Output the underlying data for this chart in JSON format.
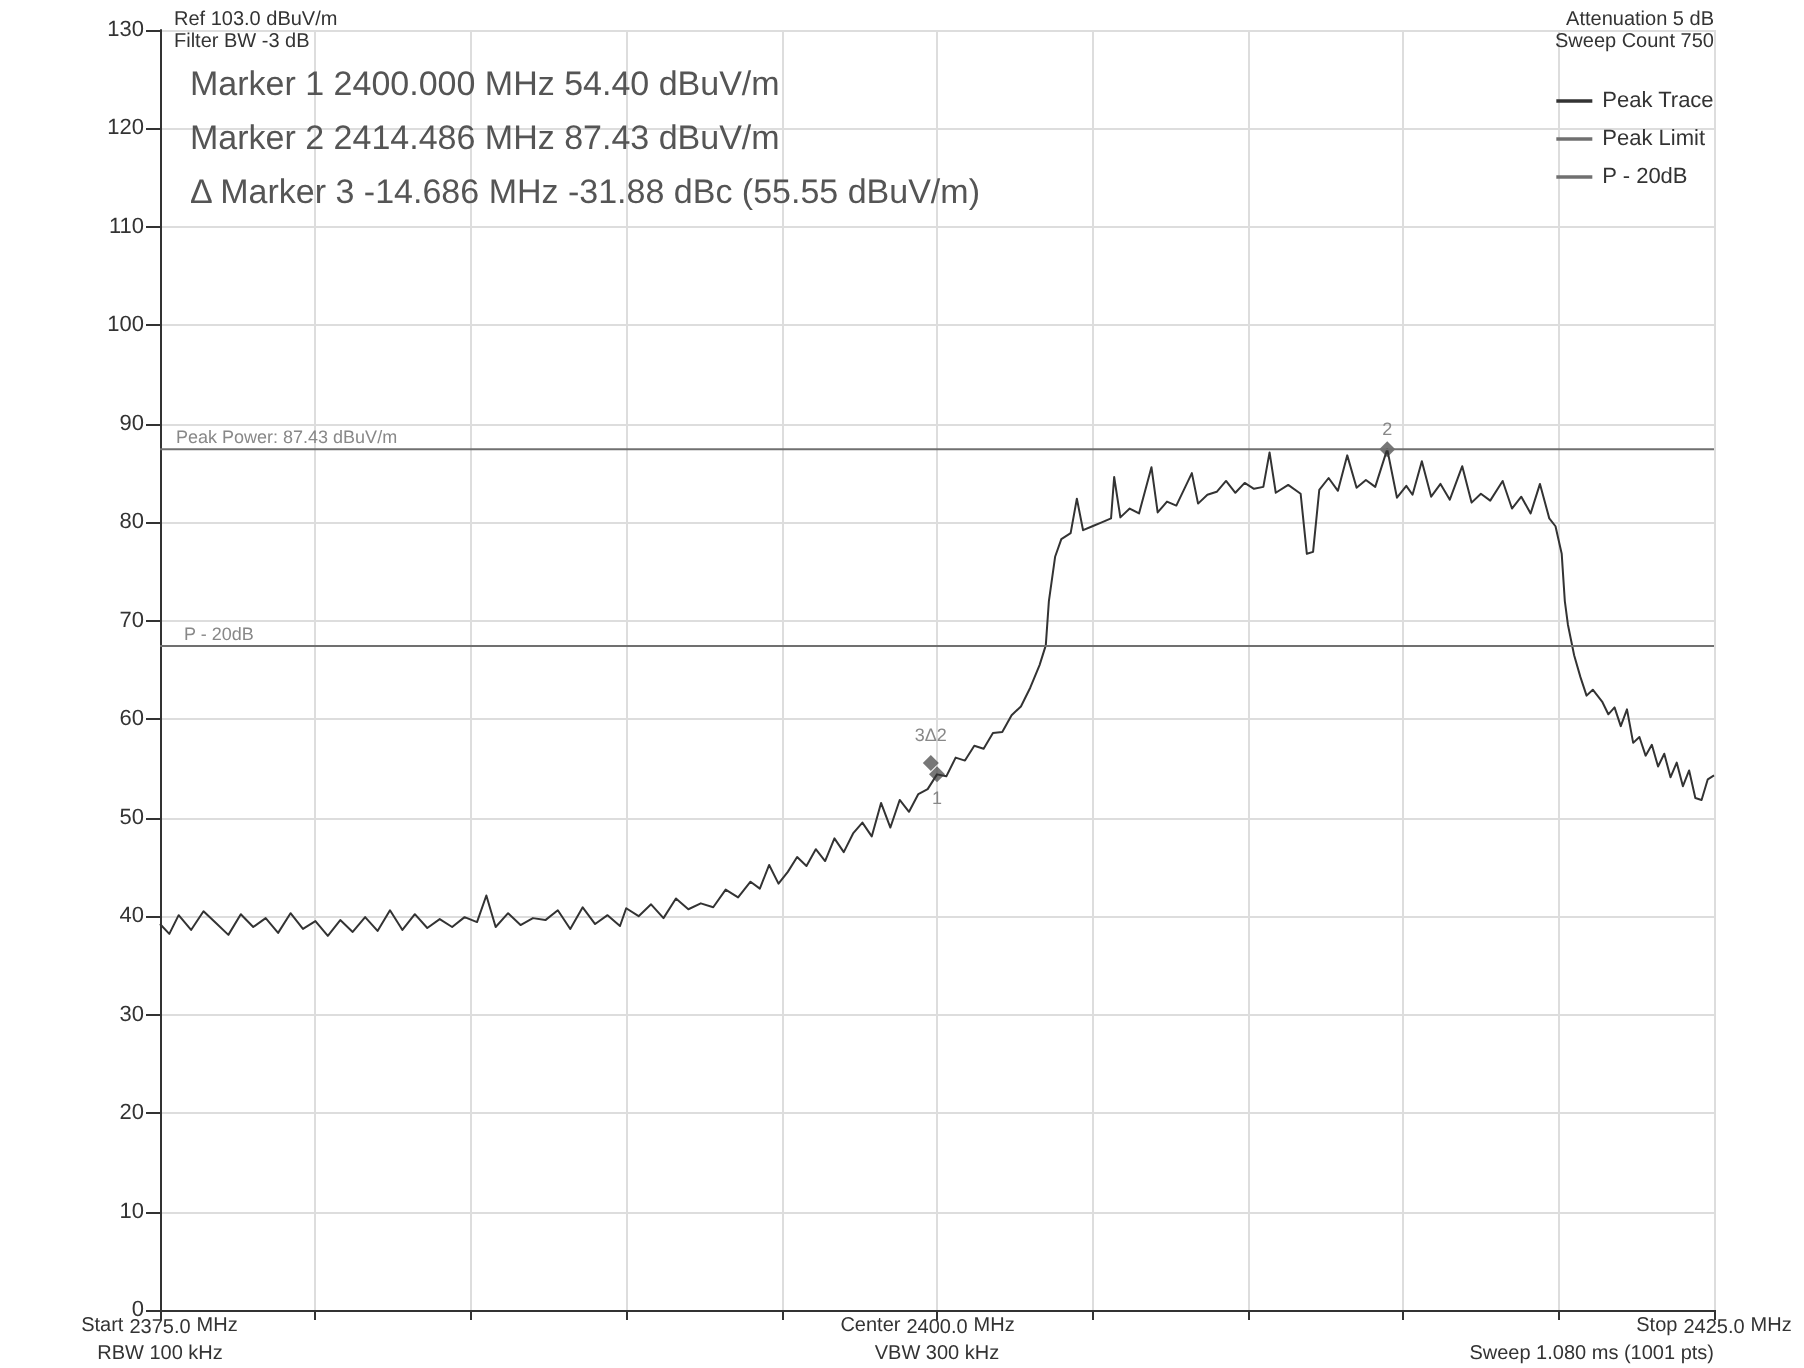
{
  "chart_data": {
    "type": "line",
    "annotations": [
      "Ref 103.0 dBuV/m",
      "Filter BW -3 dB",
      "Marker 1 2400.000 MHz 54.40 dBuV/m",
      "Marker 2 2414.486 MHz 87.43 dBuV/m",
      "Δ Marker 3 -14.686 MHz -31.88 dBc (55.55 dBuV/m)",
      "Attenuation 5 dB",
      "Sweep Count 750",
      "Start",
      "MHz",
      "RBW 100 kHz",
      "Center",
      "MHz",
      "VBW 300 kHz",
      "Stop",
      "MHz",
      "Sweep 1.080 ms (1001 pts)",
      {
        "text": "Peak Power: 87.43 dBuV/m",
        "x": 2375,
        "y": 87.43
      },
      {
        "text": "P - 20dB",
        "x": 2375,
        "y": 67.43
      },
      {
        "text": "1",
        "x": 2400,
        "y": 54.4
      },
      {
        "text": "3Δ2",
        "x": 2399.8,
        "y": 55.55
      },
      {
        "text": "2",
        "x": 2414.486,
        "y": 87.43
      }
    ],
    "series": [
      {
        "name": "Peak Trace",
        "color": "#333333",
        "x": [
          2375,
          2375.3,
          2375.6,
          2376,
          2376.4,
          2376.8,
          2377.2,
          2377.6,
          2378,
          2378.4,
          2378.8,
          2379.2,
          2379.6,
          2380,
          2380.4,
          2380.8,
          2381.2,
          2381.6,
          2382,
          2382.4,
          2382.8,
          2383.2,
          2383.6,
          2384,
          2384.4,
          2384.8,
          2385.2,
          2385.5,
          2385.8,
          2386.2,
          2386.6,
          2387,
          2387.4,
          2387.8,
          2388.2,
          2388.6,
          2389,
          2389.4,
          2389.8,
          2390,
          2390.4,
          2390.8,
          2391.2,
          2391.6,
          2392,
          2392.4,
          2392.8,
          2393.2,
          2393.6,
          2394,
          2394.3,
          2394.6,
          2394.9,
          2395.2,
          2395.5,
          2395.8,
          2396.1,
          2396.4,
          2396.7,
          2397,
          2397.3,
          2397.6,
          2397.9,
          2398.2,
          2398.5,
          2398.8,
          2399.1,
          2399.4,
          2399.7,
          2400,
          2400.3,
          2400.6,
          2400.9,
          2401.2,
          2401.5,
          2401.8,
          2402.1,
          2402.4,
          2402.7,
          2403,
          2403.3,
          2403.5,
          2403.6,
          2403.8,
          2404,
          2404.3,
          2404.5,
          2404.7,
          2405,
          2405.3,
          2405.6,
          2405.7,
          2405.9,
          2406.2,
          2406.5,
          2406.9,
          2407.1,
          2407.4,
          2407.7,
          2408.2,
          2408.4,
          2408.7,
          2409,
          2409.3,
          2409.6,
          2409.9,
          2410.2,
          2410.5,
          2410.7,
          2410.9,
          2411.3,
          2411.7,
          2411.9,
          2412.1,
          2412.3,
          2412.6,
          2412.9,
          2413.2,
          2413.5,
          2413.8,
          2414.1,
          2414.486,
          2414.8,
          2415.1,
          2415.3,
          2415.6,
          2415.9,
          2416.2,
          2416.5,
          2416.9,
          2417.2,
          2417.5,
          2417.8,
          2418.2,
          2418.5,
          2418.8,
          2419.1,
          2419.4,
          2419.7,
          2419.9,
          2420.1,
          2420.2,
          2420.3,
          2420.5,
          2420.7,
          2420.9,
          2421.1,
          2421.4,
          2421.6,
          2421.8,
          2422,
          2422.2,
          2422.4,
          2422.6,
          2422.8,
          2423,
          2423.2,
          2423.4,
          2423.6,
          2423.8,
          2424,
          2424.2,
          2424.4,
          2424.6,
          2424.8,
          2425
        ],
        "values": [
          39.2,
          38.2,
          40.1,
          38.6,
          40.5,
          39.3,
          38.1,
          40.2,
          38.9,
          39.8,
          38.3,
          40.3,
          38.7,
          39.5,
          38.0,
          39.6,
          38.4,
          39.9,
          38.5,
          40.6,
          38.6,
          40.2,
          38.8,
          39.7,
          38.9,
          39.9,
          39.4,
          42.1,
          38.9,
          40.3,
          39.1,
          39.8,
          39.6,
          40.6,
          38.7,
          40.9,
          39.2,
          40.1,
          39.0,
          40.8,
          40.0,
          41.2,
          39.8,
          41.8,
          40.7,
          41.3,
          40.9,
          42.7,
          41.9,
          43.5,
          42.8,
          45.2,
          43.3,
          44.5,
          46.0,
          45.1,
          46.8,
          45.6,
          47.9,
          46.5,
          48.4,
          49.5,
          48.1,
          51.5,
          49.0,
          51.8,
          50.6,
          52.4,
          52.9,
          54.4,
          54.2,
          56.1,
          55.8,
          57.3,
          57.0,
          58.6,
          58.7,
          60.4,
          61.3,
          63.2,
          65.5,
          67.5,
          72.0,
          76.5,
          78.3,
          78.9,
          82.4,
          79.2,
          79.6,
          80.0,
          80.4,
          84.6,
          80.5,
          81.4,
          80.9,
          85.6,
          81.0,
          82.1,
          81.7,
          85.0,
          81.9,
          82.8,
          83.1,
          84.2,
          83.0,
          84.0,
          83.4,
          83.6,
          87.1,
          83.0,
          83.8,
          82.9,
          76.8,
          77.0,
          83.3,
          84.5,
          83.2,
          86.8,
          83.5,
          84.3,
          83.6,
          87.43,
          82.5,
          83.7,
          82.8,
          86.2,
          82.6,
          83.9,
          82.3,
          85.7,
          82.0,
          82.9,
          82.2,
          84.2,
          81.4,
          82.6,
          80.9,
          83.9,
          80.4,
          79.6,
          76.8,
          72.0,
          69.6,
          66.5,
          64.3,
          62.4,
          63.0,
          61.8,
          60.5,
          61.2,
          59.3,
          61.0,
          57.6,
          58.2,
          56.3,
          57.4,
          55.2,
          56.5,
          54.1,
          55.6,
          53.2,
          54.8,
          52.0,
          51.8,
          53.9,
          54.3
        ]
      },
      {
        "name": "Peak Limit",
        "color": "#707070",
        "x": [
          2375,
          2425
        ],
        "values": [
          87.43,
          87.43
        ]
      },
      {
        "name": "P - 20dB",
        "color": "#707070",
        "x": [
          2375,
          2425
        ],
        "values": [
          67.43,
          67.43
        ]
      },
      {
        "type": "scatter",
        "color": "#555555",
        "marker": "diamond",
        "x": [
          2400,
          2399.8,
          2414.486
        ],
        "values": [
          54.4,
          55.55,
          87.43
        ]
      }
    ],
    "xlim": [
      2375,
      2425
    ],
    "xticks": [
      {
        "value": 2375,
        "label": "2375.0"
      },
      {
        "value": 2380,
        "label": null
      },
      {
        "value": 2385,
        "label": null
      },
      {
        "value": 2390,
        "label": null
      },
      {
        "value": 2395,
        "label": null
      },
      {
        "value": 2400,
        "label": "2400.0"
      },
      {
        "value": 2405,
        "label": null
      },
      {
        "value": 2410,
        "label": null
      },
      {
        "value": 2415,
        "label": null
      },
      {
        "value": 2420,
        "label": null
      },
      {
        "value": 2425,
        "label": "2425.0"
      }
    ],
    "ylim": [
      0,
      130
    ],
    "yticks": [
      0,
      10,
      20,
      30,
      40,
      50,
      60,
      70,
      80,
      90,
      100,
      110,
      120,
      130
    ],
    "grid": true,
    "legend": "top right",
    "marker": "none",
    "line_style": "solid"
  }
}
